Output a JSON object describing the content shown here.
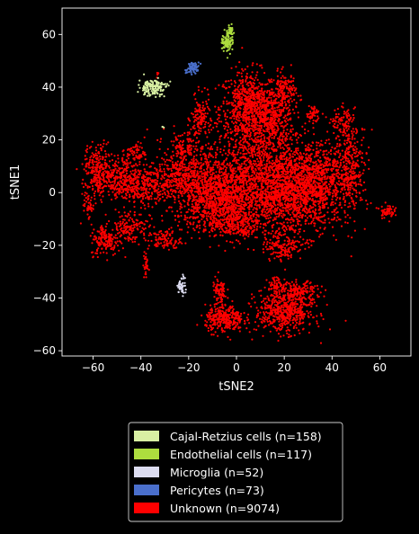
{
  "chart_data": {
    "type": "scatter",
    "title": "",
    "xlabel": "tSNE2",
    "ylabel": "tSNE1",
    "xlim": [
      -73,
      73
    ],
    "ylim": [
      -62,
      70
    ],
    "xticks": [
      -60,
      -40,
      -20,
      0,
      20,
      40,
      60
    ],
    "yticks": [
      -60,
      -40,
      -20,
      0,
      20,
      40,
      60
    ],
    "grid": false,
    "legend_position": "bottom-center",
    "series": [
      {
        "name": "Cajal-Retzius cells (n=158)",
        "color": "#d9f0a3",
        "clusters": [
          {
            "x": -35,
            "y": 40,
            "sx": 3.0,
            "sy": 1.6,
            "n": 150
          },
          {
            "x": -31,
            "y": 25,
            "sx": 0.3,
            "sy": 0.3,
            "n": 3
          }
        ]
      },
      {
        "name": "Endothelial cells (n=117)",
        "color": "#addd3e",
        "clusters": [
          {
            "x": -4,
            "y": 57,
            "sx": 1.2,
            "sy": 2.0,
            "n": 80
          },
          {
            "x": -2.5,
            "y": 61,
            "sx": 0.6,
            "sy": 1.5,
            "n": 30
          }
        ]
      },
      {
        "name": "Microglia (n=52)",
        "color": "#dcdcf0",
        "clusters": [
          {
            "x": -23,
            "y": -35.5,
            "sx": 0.8,
            "sy": 1.5,
            "n": 45
          },
          {
            "x": -22,
            "y": -32,
            "sx": 0.3,
            "sy": 0.5,
            "n": 5
          }
        ]
      },
      {
        "name": "Pericytes (n=73)",
        "color": "#4a6fcc",
        "clusters": [
          {
            "x": -18,
            "y": 47.5,
            "sx": 1.2,
            "sy": 1.0,
            "n": 60
          },
          {
            "x": -21,
            "y": 46,
            "sx": 0.4,
            "sy": 0.4,
            "n": 6
          }
        ]
      },
      {
        "name": "Unknown (n=9074)",
        "color": "#ff0000",
        "clusters": [
          {
            "x": 5,
            "y": 32,
            "sx": 6,
            "sy": 7,
            "n": 700
          },
          {
            "x": 14,
            "y": 28,
            "sx": 5,
            "sy": 6,
            "n": 400
          },
          {
            "x": 20,
            "y": 38,
            "sx": 2.5,
            "sy": 4,
            "n": 150
          },
          {
            "x": -15,
            "y": 28,
            "sx": 2,
            "sy": 4,
            "n": 120
          },
          {
            "x": 10,
            "y": 5,
            "sx": 14,
            "sy": 9,
            "n": 1600
          },
          {
            "x": 25,
            "y": 0,
            "sx": 9,
            "sy": 8,
            "n": 900
          },
          {
            "x": 35,
            "y": 5,
            "sx": 5,
            "sy": 7,
            "n": 350
          },
          {
            "x": 48,
            "y": 10,
            "sx": 3.5,
            "sy": 8,
            "n": 300
          },
          {
            "x": 45,
            "y": 26,
            "sx": 2.5,
            "sy": 3,
            "n": 100
          },
          {
            "x": 32,
            "y": 30,
            "sx": 1.5,
            "sy": 1.5,
            "n": 50
          },
          {
            "x": -8,
            "y": -3,
            "sx": 9,
            "sy": 6,
            "n": 900
          },
          {
            "x": -22,
            "y": 5,
            "sx": 7,
            "sy": 5,
            "n": 400
          },
          {
            "x": -22,
            "y": 15,
            "sx": 4,
            "sy": 4,
            "n": 150
          },
          {
            "x": -40,
            "y": 3,
            "sx": 5,
            "sy": 4,
            "n": 300
          },
          {
            "x": -58,
            "y": 8,
            "sx": 3,
            "sy": 5,
            "n": 250
          },
          {
            "x": -50,
            "y": 6,
            "sx": 4,
            "sy": 4,
            "n": 200
          },
          {
            "x": -42,
            "y": 15,
            "sx": 2,
            "sy": 2,
            "n": 60
          },
          {
            "x": -55,
            "y": -18,
            "sx": 3,
            "sy": 3,
            "n": 150
          },
          {
            "x": -45,
            "y": -13,
            "sx": 4,
            "sy": 3,
            "n": 150
          },
          {
            "x": -30,
            "y": -18,
            "sx": 3.5,
            "sy": 2,
            "n": 100
          },
          {
            "x": -62,
            "y": -5,
            "sx": 1,
            "sy": 2,
            "n": 40
          },
          {
            "x": -38,
            "y": -28,
            "sx": 0.5,
            "sy": 3,
            "n": 30
          },
          {
            "x": 0,
            "y": -12,
            "sx": 5,
            "sy": 3,
            "n": 200
          },
          {
            "x": 20,
            "y": -20,
            "sx": 4,
            "sy": 3,
            "n": 150
          },
          {
            "x": 63,
            "y": -7,
            "sx": 1.5,
            "sy": 1.3,
            "n": 60
          },
          {
            "x": -5,
            "y": -48,
            "sx": 4,
            "sy": 2.5,
            "n": 300
          },
          {
            "x": -7,
            "y": -38,
            "sx": 1.5,
            "sy": 3,
            "n": 80
          },
          {
            "x": 20,
            "y": -45,
            "sx": 6,
            "sy": 4,
            "n": 550
          },
          {
            "x": 27,
            "y": -38,
            "sx": 4,
            "sy": 2,
            "n": 150
          },
          {
            "x": 17,
            "y": -35,
            "sx": 2,
            "sy": 1.5,
            "n": 60
          },
          {
            "x": -33,
            "y": 45,
            "sx": 0.2,
            "sy": 0.6,
            "n": 5
          }
        ]
      }
    ]
  }
}
